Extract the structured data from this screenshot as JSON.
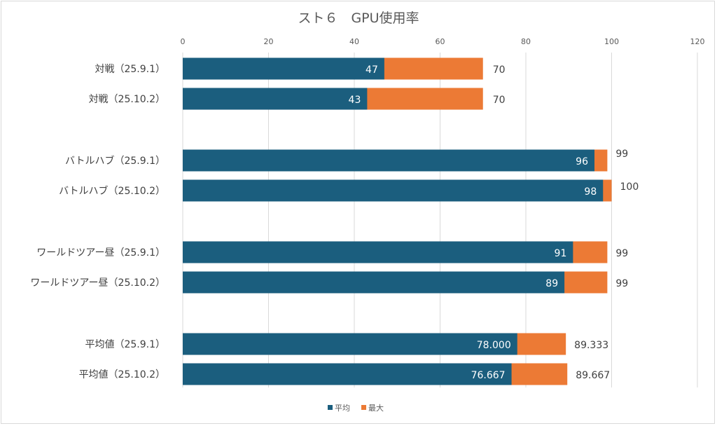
{
  "chart_data": {
    "type": "bar",
    "orientation": "horizontal",
    "stacked_overlay": true,
    "title": "スト６　GPU使用率",
    "xlabel": "",
    "ylabel": "",
    "xlim": [
      0,
      120
    ],
    "xticks": [
      0,
      20,
      40,
      60,
      80,
      100,
      120
    ],
    "grid": true,
    "legend_position": "bottom",
    "categories": [
      "対戦（25.9.1）",
      "対戦（25.10.2）",
      "バトルハブ（25.9.1）",
      "バトルハブ（25.10.2）",
      "ワールドツアー昼（25.9.1）",
      "ワールドツアー昼（25.10.2）",
      "平均値（25.9.1）",
      "平均値（25.10.2）"
    ],
    "series": [
      {
        "name": "平均",
        "color": "#1b5e7e",
        "values": [
          47,
          43,
          96,
          98,
          91,
          89,
          78.0,
          76.667
        ],
        "labels": [
          "47",
          "43",
          "96",
          "98",
          "91",
          "89",
          "78.000",
          "76.667"
        ]
      },
      {
        "name": "最大",
        "color": "#ec7a35",
        "values": [
          70,
          70,
          99,
          100,
          99,
          99,
          89.333,
          89.667
        ],
        "labels": [
          "70",
          "70",
          "99",
          "100",
          "99",
          "99",
          "89.333",
          "89.667"
        ]
      }
    ]
  }
}
